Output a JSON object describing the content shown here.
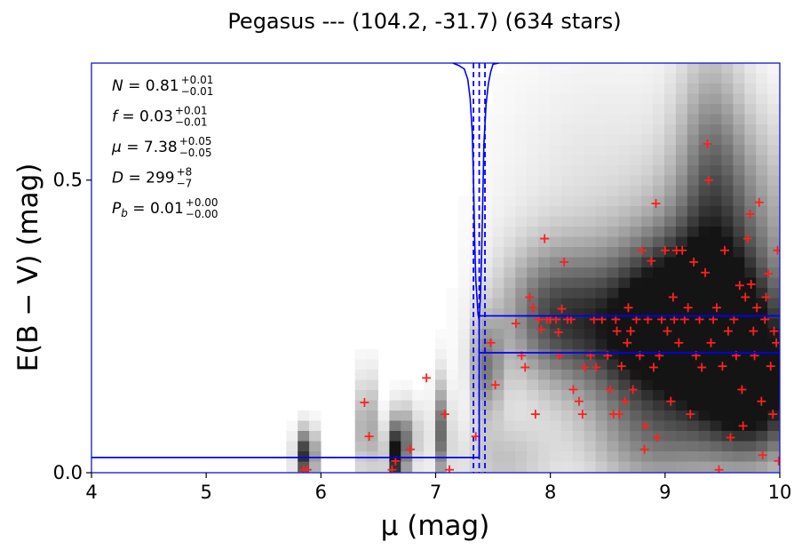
{
  "chart_data": {
    "type": "heatmap",
    "title": "Pegasus --- (104.2, -31.7) (634 stars)",
    "xlabel": "μ (mag)",
    "ylabel": "E(B − V) (mag)",
    "xlim": [
      4,
      10
    ],
    "ylim": [
      0,
      0.7
    ],
    "xticks": [
      4,
      5,
      6,
      7,
      8,
      9,
      10
    ],
    "xtick_labels": [
      "4",
      "5",
      "6",
      "7",
      "8",
      "9",
      "10"
    ],
    "yticks": [
      0.0,
      0.5
    ],
    "ytick_labels": [
      "0.0",
      "0.5"
    ],
    "grid": false,
    "annotations": [
      {
        "var": "N",
        "value": "0.81",
        "plus": "+0.01",
        "minus": "−0.01"
      },
      {
        "var": "f",
        "value": "0.03",
        "plus": "+0.01",
        "minus": "−0.01"
      },
      {
        "var": "μ",
        "value": "7.38",
        "plus": "+0.05",
        "minus": "−0.05"
      },
      {
        "var": "D",
        "value": "299",
        "plus": "+8",
        "minus": "−7"
      },
      {
        "var": "P",
        "sub": "b",
        "value": "0.01",
        "plus": "+0.00",
        "minus": "−0.00"
      }
    ],
    "best_fit_step": {
      "color": "#0000ff",
      "distance_modulus": 7.38,
      "foreground_reddening": 0.026,
      "cloud_reddening_low": 0.205,
      "cloud_reddening_high": 0.268
    },
    "mu_bounds": {
      "color": "#0000ff",
      "style": "dashed",
      "values": [
        7.33,
        7.43,
        7.38
      ]
    },
    "mu_posterior_curve": {
      "color": "#0000ff",
      "x": [
        7.15,
        7.2,
        7.25,
        7.28,
        7.3,
        7.32,
        7.33,
        7.34,
        7.35,
        7.36,
        7.37,
        7.38,
        7.39,
        7.4,
        7.41,
        7.42,
        7.44,
        7.46,
        7.48,
        7.5,
        7.55
      ],
      "y": [
        0.7,
        0.696,
        0.69,
        0.672,
        0.64,
        0.58,
        0.5,
        0.4,
        0.33,
        0.3,
        0.27,
        0.26,
        0.3,
        0.37,
        0.46,
        0.56,
        0.63,
        0.665,
        0.685,
        0.698,
        0.7
      ]
    },
    "heatmap_blobs": [
      {
        "x": 5.87,
        "y": 0.03,
        "sx": 0.06,
        "sy": 0.03,
        "w": 0.95
      },
      {
        "x": 6.4,
        "y": 0.075,
        "sx": 0.05,
        "sy": 0.06,
        "w": 0.55
      },
      {
        "x": 6.65,
        "y": 0.03,
        "sx": 0.06,
        "sy": 0.04,
        "w": 0.9
      },
      {
        "x": 6.75,
        "y": 0.06,
        "sx": 0.08,
        "sy": 0.04,
        "w": 0.4
      },
      {
        "x": 7.05,
        "y": 0.07,
        "sx": 0.05,
        "sy": 0.06,
        "w": 0.6
      },
      {
        "x": 7.45,
        "y": 0.18,
        "sx": 0.1,
        "sy": 0.06,
        "w": 0.5
      },
      {
        "x": 8.0,
        "y": 0.27,
        "sx": 0.3,
        "sy": 0.08,
        "w": 0.6
      },
      {
        "x": 8.7,
        "y": 0.23,
        "sx": 0.4,
        "sy": 0.09,
        "w": 0.65
      },
      {
        "x": 9.2,
        "y": 0.28,
        "sx": 0.45,
        "sy": 0.1,
        "w": 0.85
      },
      {
        "x": 9.6,
        "y": 0.2,
        "sx": 0.4,
        "sy": 0.1,
        "w": 0.8
      },
      {
        "x": 9.8,
        "y": 0.12,
        "sx": 0.3,
        "sy": 0.08,
        "w": 0.65
      },
      {
        "x": 9.4,
        "y": 0.55,
        "sx": 0.2,
        "sy": 0.15,
        "w": 0.35
      },
      {
        "x": 9.6,
        "y": 0.45,
        "sx": 0.4,
        "sy": 0.12,
        "w": 0.4
      },
      {
        "x": 8.4,
        "y": 0.45,
        "sx": 0.6,
        "sy": 0.18,
        "w": 0.12
      },
      {
        "x": 8.9,
        "y": 0.05,
        "sx": 0.4,
        "sy": 0.07,
        "w": 0.4
      },
      {
        "x": 7.6,
        "y": 0.02,
        "sx": 0.3,
        "sy": 0.05,
        "w": 0.25
      }
    ],
    "stars": {
      "color": "#ff2020",
      "marker": "+",
      "points": [
        [
          5.85,
          0.005
        ],
        [
          5.88,
          0.005
        ],
        [
          6.38,
          0.12
        ],
        [
          6.42,
          0.062
        ],
        [
          6.62,
          0.005
        ],
        [
          6.65,
          0.02
        ],
        [
          6.78,
          0.04
        ],
        [
          6.92,
          0.162
        ],
        [
          7.08,
          0.1
        ],
        [
          7.12,
          0.005
        ],
        [
          7.35,
          0.062
        ],
        [
          7.48,
          0.222
        ],
        [
          7.52,
          0.15
        ],
        [
          7.7,
          0.255
        ],
        [
          7.75,
          0.2
        ],
        [
          7.78,
          0.18
        ],
        [
          7.82,
          0.3
        ],
        [
          7.85,
          0.282
        ],
        [
          7.87,
          0.1
        ],
        [
          7.9,
          0.262
        ],
        [
          7.92,
          0.245
        ],
        [
          7.95,
          0.4
        ],
        [
          7.97,
          0.262
        ],
        [
          8.0,
          0.262
        ],
        [
          8.05,
          0.262
        ],
        [
          8.07,
          0.24
        ],
        [
          8.08,
          0.2
        ],
        [
          8.1,
          0.28
        ],
        [
          8.12,
          0.36
        ],
        [
          8.15,
          0.262
        ],
        [
          8.18,
          0.262
        ],
        [
          8.2,
          0.142
        ],
        [
          8.25,
          0.122
        ],
        [
          8.28,
          0.1
        ],
        [
          8.3,
          0.18
        ],
        [
          8.35,
          0.2
        ],
        [
          8.38,
          0.262
        ],
        [
          8.4,
          0.18
        ],
        [
          8.45,
          0.262
        ],
        [
          8.5,
          0.2
        ],
        [
          8.52,
          0.142
        ],
        [
          8.55,
          0.1
        ],
        [
          8.57,
          0.262
        ],
        [
          8.58,
          0.242
        ],
        [
          8.6,
          0.1
        ],
        [
          8.62,
          0.182
        ],
        [
          8.65,
          0.122
        ],
        [
          8.67,
          0.222
        ],
        [
          8.68,
          0.282
        ],
        [
          8.7,
          0.242
        ],
        [
          8.72,
          0.142
        ],
        [
          8.75,
          0.262
        ],
        [
          8.78,
          0.2
        ],
        [
          8.8,
          0.38
        ],
        [
          8.82,
          0.04
        ],
        [
          8.83,
          0.08
        ],
        [
          8.85,
          0.262
        ],
        [
          8.88,
          0.362
        ],
        [
          8.9,
          0.18
        ],
        [
          8.92,
          0.46
        ],
        [
          8.93,
          0.06
        ],
        [
          8.95,
          0.2
        ],
        [
          8.97,
          0.262
        ],
        [
          9.0,
          0.38
        ],
        [
          9.02,
          0.242
        ],
        [
          9.05,
          0.122
        ],
        [
          9.07,
          0.3
        ],
        [
          9.08,
          0.262
        ],
        [
          9.1,
          0.38
        ],
        [
          9.12,
          0.222
        ],
        [
          9.15,
          0.38
        ],
        [
          9.17,
          0.262
        ],
        [
          9.2,
          0.282
        ],
        [
          9.22,
          0.1
        ],
        [
          9.25,
          0.36
        ],
        [
          9.27,
          0.2
        ],
        [
          9.3,
          0.262
        ],
        [
          9.32,
          0.18
        ],
        [
          9.35,
          0.342
        ],
        [
          9.37,
          0.562
        ],
        [
          9.38,
          0.5
        ],
        [
          9.4,
          0.222
        ],
        [
          9.42,
          0.262
        ],
        [
          9.45,
          0.282
        ],
        [
          9.47,
          0.005
        ],
        [
          9.5,
          0.182
        ],
        [
          9.52,
          0.38
        ],
        [
          9.55,
          0.242
        ],
        [
          9.57,
          0.06
        ],
        [
          9.6,
          0.262
        ],
        [
          9.62,
          0.2
        ],
        [
          9.65,
          0.32
        ],
        [
          9.67,
          0.142
        ],
        [
          9.68,
          0.08
        ],
        [
          9.7,
          0.3
        ],
        [
          9.72,
          0.4
        ],
        [
          9.74,
          0.442
        ],
        [
          9.75,
          0.322
        ],
        [
          9.77,
          0.242
        ],
        [
          9.78,
          0.2
        ],
        [
          9.8,
          0.282
        ],
        [
          9.82,
          0.462
        ],
        [
          9.84,
          0.122
        ],
        [
          9.85,
          0.03
        ],
        [
          9.87,
          0.262
        ],
        [
          9.88,
          0.3
        ],
        [
          9.9,
          0.34
        ],
        [
          9.92,
          0.182
        ],
        [
          9.94,
          0.1
        ],
        [
          9.95,
          0.242
        ],
        [
          9.97,
          0.222
        ],
        [
          9.98,
          0.38
        ],
        [
          9.99,
          0.02
        ]
      ]
    }
  }
}
